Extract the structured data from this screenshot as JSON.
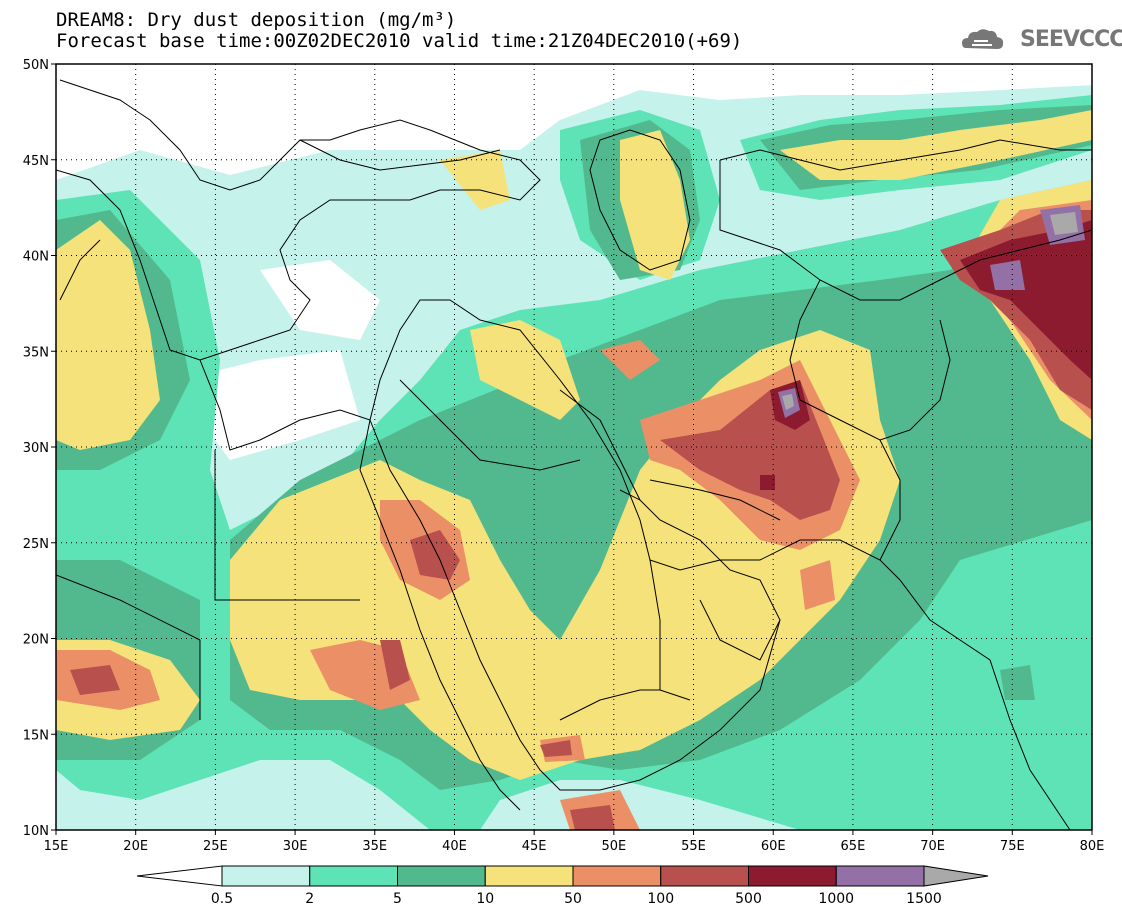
{
  "title": {
    "line1": "DREAM8: Dry dust deposition (mg/m³)",
    "line2": "Forecast base time:00Z02DEC2010 valid time:21Z04DEC2010(+69)"
  },
  "logo": {
    "text": "SEEVCCC",
    "icon": "cloud-logo-icon"
  },
  "map": {
    "lon_range": [
      15,
      80
    ],
    "lat_range": [
      10,
      50
    ],
    "lon_ticks": [
      "15E",
      "20E",
      "25E",
      "30E",
      "35E",
      "40E",
      "45E",
      "50E",
      "55E",
      "60E",
      "65E",
      "70E",
      "75E",
      "80E"
    ],
    "lat_ticks": [
      "10N",
      "15N",
      "20N",
      "25N",
      "30N",
      "35N",
      "40N",
      "45N",
      "50N"
    ],
    "grid": "dotted"
  },
  "colorbar": {
    "levels": [
      "0.5",
      "2",
      "5",
      "10",
      "50",
      "100",
      "500",
      "1000",
      "1500"
    ],
    "colors": [
      "#ffffff",
      "#c6f2ec",
      "#5ee3b7",
      "#52b98e",
      "#f6e27a",
      "#eb8f67",
      "#b8504d",
      "#8c1b2f",
      "#9370a5",
      "#a9a9a9"
    ]
  },
  "colors": {
    "c0": "#ffffff",
    "c1": "#c6f2ec",
    "c2": "#5ee3b7",
    "c3": "#52b98e",
    "c4": "#f6e27a",
    "c5": "#eb8f67",
    "c6": "#b8504d",
    "c7": "#8c1b2f",
    "c8": "#9370a5",
    "c9": "#a9a9a9"
  }
}
